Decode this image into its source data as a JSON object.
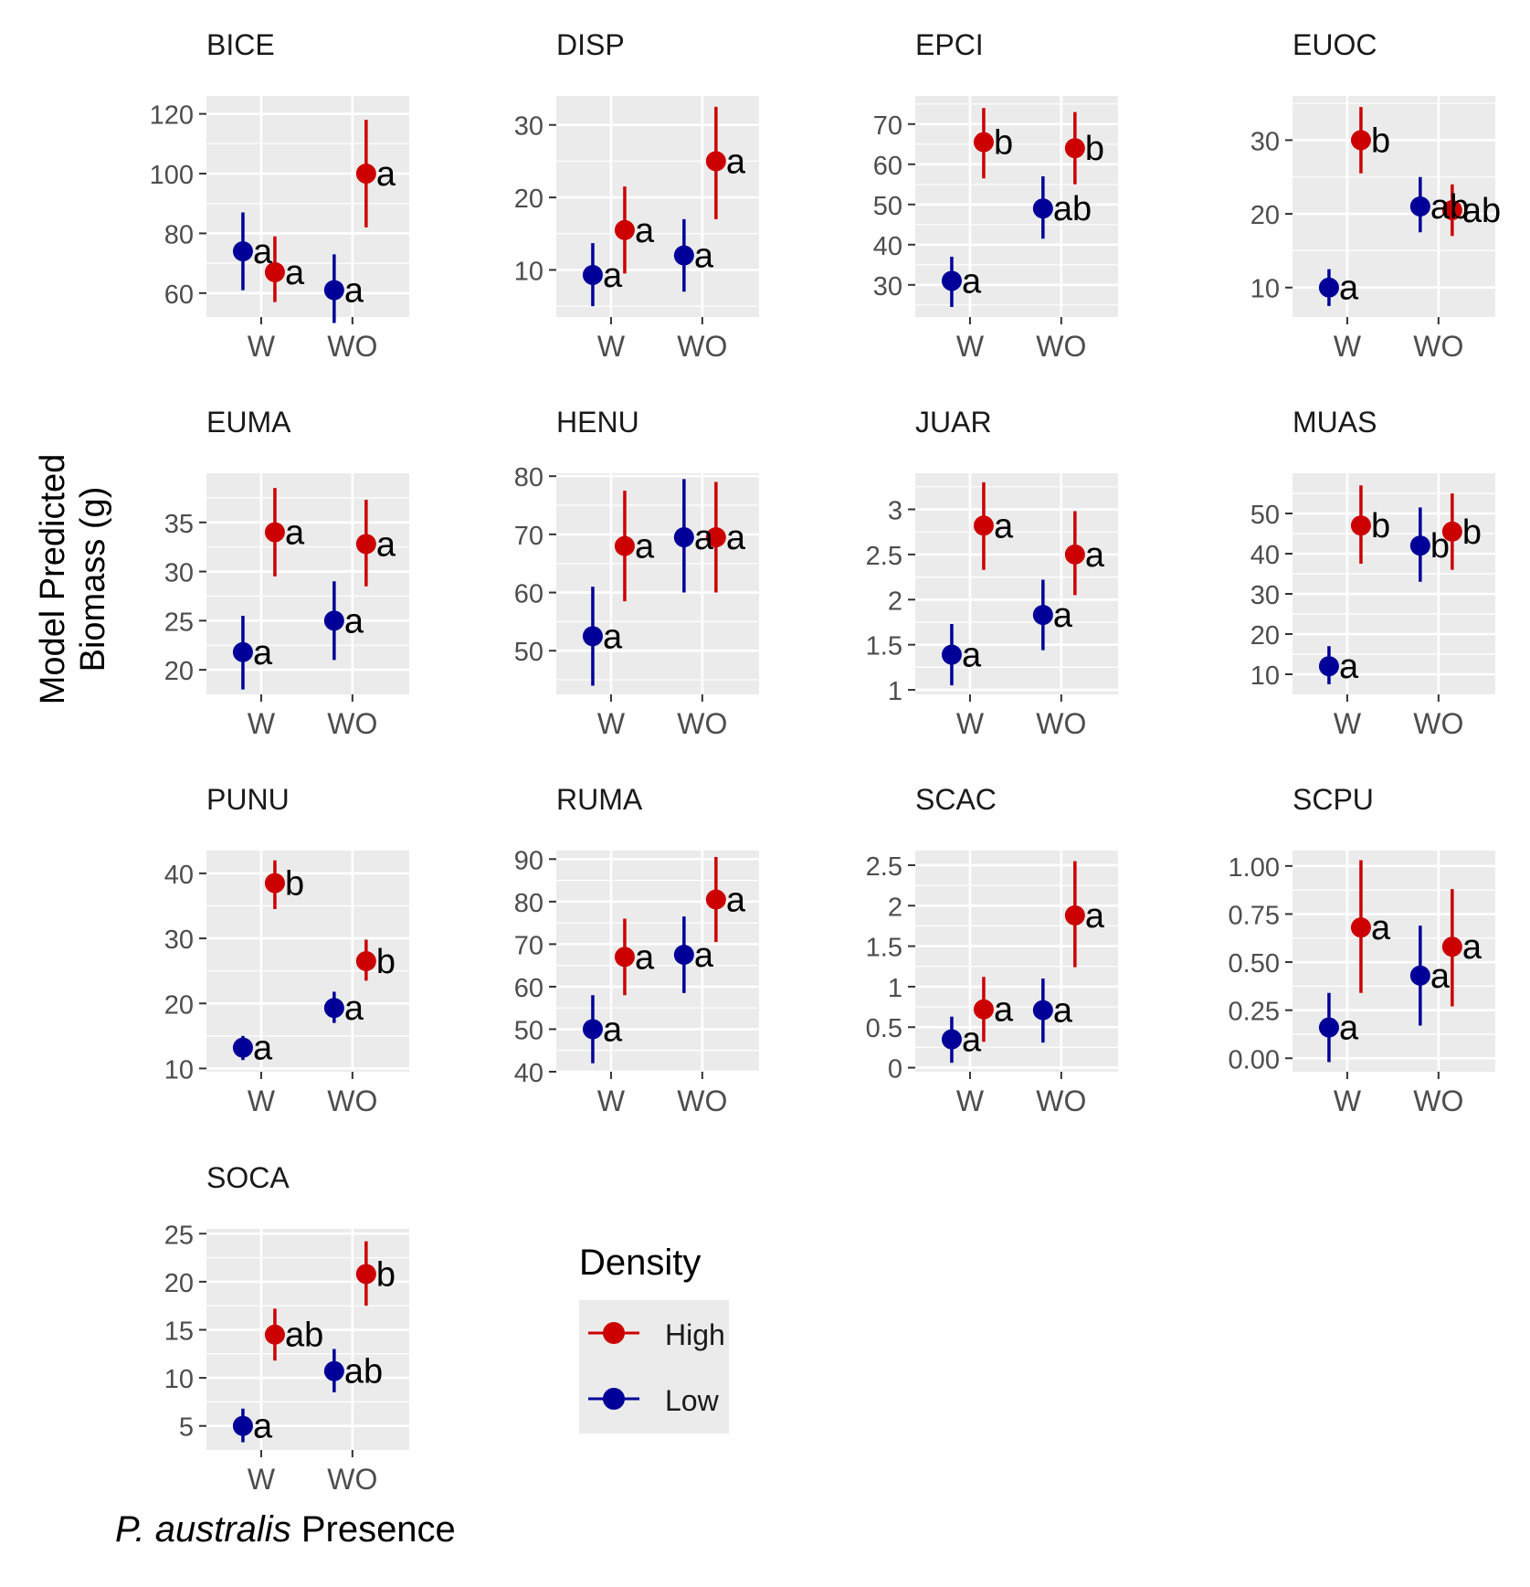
{
  "figure": {
    "y_axis_label_line1": "Model Predicted",
    "y_axis_label_line2": "Biomass (g)",
    "x_axis_label_italic": "P. australis",
    "x_axis_label_rest": " Presence"
  },
  "legend": {
    "title": "Density",
    "items": [
      {
        "label": "High",
        "color": "#cc0000"
      },
      {
        "label": "Low",
        "color": "#000099"
      }
    ]
  },
  "colors": {
    "High": "#cc0000",
    "Low": "#000099",
    "panel_bg": "#ebebeb",
    "grid": "#ffffff"
  },
  "chart_data": [
    {
      "type": "scatter",
      "title": "BICE",
      "categories": [
        "W",
        "WO"
      ],
      "ylim": [
        52,
        126
      ],
      "yticks": [
        60,
        80,
        100,
        120
      ],
      "series": [
        {
          "name": "High",
          "points": [
            {
              "x": "W",
              "y": 67,
              "lo": 57,
              "hi": 79,
              "label": "a"
            },
            {
              "x": "WO",
              "y": 100,
              "lo": 82,
              "hi": 118,
              "label": "a"
            }
          ]
        },
        {
          "name": "Low",
          "points": [
            {
              "x": "W",
              "y": 74,
              "lo": 61,
              "hi": 87,
              "label": "a"
            },
            {
              "x": "WO",
              "y": 61,
              "lo": 50,
              "hi": 73,
              "label": "a"
            }
          ]
        }
      ]
    },
    {
      "type": "scatter",
      "title": "DISP",
      "categories": [
        "W",
        "WO"
      ],
      "ylim": [
        3.5,
        34
      ],
      "yticks": [
        10,
        20,
        30
      ],
      "series": [
        {
          "name": "High",
          "points": [
            {
              "x": "W",
              "y": 15.5,
              "lo": 9.5,
              "hi": 21.5,
              "label": "a"
            },
            {
              "x": "WO",
              "y": 25,
              "lo": 17,
              "hi": 32.5,
              "label": "a"
            }
          ]
        },
        {
          "name": "Low",
          "points": [
            {
              "x": "W",
              "y": 9.3,
              "lo": 5,
              "hi": 13.7,
              "label": "a"
            },
            {
              "x": "WO",
              "y": 12,
              "lo": 7,
              "hi": 17,
              "label": "a"
            }
          ]
        }
      ]
    },
    {
      "type": "scatter",
      "title": "EPCI",
      "categories": [
        "W",
        "WO"
      ],
      "ylim": [
        22,
        77
      ],
      "yticks": [
        30,
        40,
        50,
        60,
        70
      ],
      "series": [
        {
          "name": "High",
          "points": [
            {
              "x": "W",
              "y": 65.5,
              "lo": 56.5,
              "hi": 74,
              "label": "b"
            },
            {
              "x": "WO",
              "y": 64,
              "lo": 55,
              "hi": 73,
              "label": "b"
            }
          ]
        },
        {
          "name": "Low",
          "points": [
            {
              "x": "W",
              "y": 31,
              "lo": 24.5,
              "hi": 37,
              "label": "a"
            },
            {
              "x": "WO",
              "y": 49,
              "lo": 41.5,
              "hi": 57,
              "label": "ab"
            }
          ]
        }
      ]
    },
    {
      "type": "scatter",
      "title": "EUOC",
      "categories": [
        "W",
        "WO"
      ],
      "ylim": [
        6,
        36
      ],
      "yticks": [
        10,
        20,
        30
      ],
      "series": [
        {
          "name": "High",
          "points": [
            {
              "x": "W",
              "y": 30,
              "lo": 25.5,
              "hi": 34.5,
              "label": "b"
            },
            {
              "x": "WO",
              "y": 20.5,
              "lo": 17,
              "hi": 24,
              "label": "ab"
            }
          ]
        },
        {
          "name": "Low",
          "points": [
            {
              "x": "W",
              "y": 10,
              "lo": 7.5,
              "hi": 12.5,
              "label": "a"
            },
            {
              "x": "WO",
              "y": 21,
              "lo": 17.5,
              "hi": 25,
              "label": "ab"
            }
          ]
        }
      ]
    },
    {
      "type": "scatter",
      "title": "EUMA",
      "categories": [
        "W",
        "WO"
      ],
      "ylim": [
        17.5,
        40
      ],
      "yticks": [
        20,
        25,
        30,
        35
      ],
      "series": [
        {
          "name": "High",
          "points": [
            {
              "x": "W",
              "y": 34,
              "lo": 29.5,
              "hi": 38.5,
              "label": "a"
            },
            {
              "x": "WO",
              "y": 32.8,
              "lo": 28.5,
              "hi": 37.3,
              "label": "a"
            }
          ]
        },
        {
          "name": "Low",
          "points": [
            {
              "x": "W",
              "y": 21.8,
              "lo": 18,
              "hi": 25.5,
              "label": "a"
            },
            {
              "x": "WO",
              "y": 25,
              "lo": 21,
              "hi": 29,
              "label": "a"
            }
          ]
        }
      ]
    },
    {
      "type": "scatter",
      "title": "HENU",
      "categories": [
        "W",
        "WO"
      ],
      "ylim": [
        42.5,
        80.5
      ],
      "yticks": [
        50,
        60,
        70,
        80
      ],
      "series": [
        {
          "name": "High",
          "points": [
            {
              "x": "W",
              "y": 68,
              "lo": 58.5,
              "hi": 77.5,
              "label": "a"
            },
            {
              "x": "WO",
              "y": 69.5,
              "lo": 60,
              "hi": 79,
              "label": "a"
            }
          ]
        },
        {
          "name": "Low",
          "points": [
            {
              "x": "W",
              "y": 52.5,
              "lo": 44,
              "hi": 61,
              "label": "a"
            },
            {
              "x": "WO",
              "y": 69.5,
              "lo": 60,
              "hi": 79.5,
              "label": "a"
            }
          ]
        }
      ]
    },
    {
      "type": "scatter",
      "title": "JUAR",
      "categories": [
        "W",
        "WO"
      ],
      "ylim": [
        0.95,
        3.4
      ],
      "yticks": [
        1.0,
        1.5,
        2.0,
        2.5,
        3.0
      ],
      "series": [
        {
          "name": "High",
          "points": [
            {
              "x": "W",
              "y": 2.82,
              "lo": 2.33,
              "hi": 3.3,
              "label": "a"
            },
            {
              "x": "WO",
              "y": 2.5,
              "lo": 2.05,
              "hi": 2.98,
              "label": "a"
            }
          ]
        },
        {
          "name": "Low",
          "points": [
            {
              "x": "W",
              "y": 1.39,
              "lo": 1.05,
              "hi": 1.73,
              "label": "a"
            },
            {
              "x": "WO",
              "y": 1.83,
              "lo": 1.44,
              "hi": 2.22,
              "label": "a"
            }
          ]
        }
      ]
    },
    {
      "type": "scatter",
      "title": "MUAS",
      "categories": [
        "W",
        "WO"
      ],
      "ylim": [
        5,
        60
      ],
      "yticks": [
        10,
        20,
        30,
        40,
        50
      ],
      "series": [
        {
          "name": "High",
          "points": [
            {
              "x": "W",
              "y": 47,
              "lo": 37.5,
              "hi": 57,
              "label": "b"
            },
            {
              "x": "WO",
              "y": 45.5,
              "lo": 36,
              "hi": 55,
              "label": "b"
            }
          ]
        },
        {
          "name": "Low",
          "points": [
            {
              "x": "W",
              "y": 12,
              "lo": 7.5,
              "hi": 17,
              "label": "a"
            },
            {
              "x": "WO",
              "y": 42,
              "lo": 33,
              "hi": 51.5,
              "label": "b"
            }
          ]
        }
      ]
    },
    {
      "type": "scatter",
      "title": "PUNU",
      "categories": [
        "W",
        "WO"
      ],
      "ylim": [
        9.5,
        43.5
      ],
      "yticks": [
        10,
        20,
        30,
        40
      ],
      "series": [
        {
          "name": "High",
          "points": [
            {
              "x": "W",
              "y": 38.5,
              "lo": 34.5,
              "hi": 42,
              "label": "b"
            },
            {
              "x": "WO",
              "y": 26.5,
              "lo": 23.5,
              "hi": 29.8,
              "label": "b"
            }
          ]
        },
        {
          "name": "Low",
          "points": [
            {
              "x": "W",
              "y": 13.2,
              "lo": 11.3,
              "hi": 15,
              "label": "a"
            },
            {
              "x": "WO",
              "y": 19.3,
              "lo": 17,
              "hi": 21.8,
              "label": "a"
            }
          ]
        }
      ]
    },
    {
      "type": "scatter",
      "title": "RUMA",
      "categories": [
        "W",
        "WO"
      ],
      "ylim": [
        40,
        92
      ],
      "yticks": [
        40,
        50,
        60,
        70,
        80,
        90
      ],
      "series": [
        {
          "name": "High",
          "points": [
            {
              "x": "W",
              "y": 67,
              "lo": 58,
              "hi": 76,
              "label": "a"
            },
            {
              "x": "WO",
              "y": 80.5,
              "lo": 70.5,
              "hi": 90.5,
              "label": "a"
            }
          ]
        },
        {
          "name": "Low",
          "points": [
            {
              "x": "W",
              "y": 50,
              "lo": 42,
              "hi": 58,
              "label": "a"
            },
            {
              "x": "WO",
              "y": 67.5,
              "lo": 58.5,
              "hi": 76.5,
              "label": "a"
            }
          ]
        }
      ]
    },
    {
      "type": "scatter",
      "title": "SCAC",
      "categories": [
        "W",
        "WO"
      ],
      "ylim": [
        -0.05,
        2.68
      ],
      "yticks": [
        0.0,
        0.5,
        1.0,
        1.5,
        2.0,
        2.5
      ],
      "series": [
        {
          "name": "High",
          "points": [
            {
              "x": "W",
              "y": 0.72,
              "lo": 0.32,
              "hi": 1.12,
              "label": "a"
            },
            {
              "x": "WO",
              "y": 1.88,
              "lo": 1.24,
              "hi": 2.55,
              "label": "a"
            }
          ]
        },
        {
          "name": "Low",
          "points": [
            {
              "x": "W",
              "y": 0.35,
              "lo": 0.06,
              "hi": 0.63,
              "label": "a"
            },
            {
              "x": "WO",
              "y": 0.71,
              "lo": 0.31,
              "hi": 1.1,
              "label": "a"
            }
          ]
        }
      ]
    },
    {
      "type": "scatter",
      "title": "SCPU",
      "categories": [
        "W",
        "WO"
      ],
      "ylim": [
        -0.07,
        1.08
      ],
      "yticks": [
        0.0,
        0.25,
        0.5,
        0.75,
        1.0
      ],
      "ytick_labels": [
        "0.00",
        "0.25",
        "0.50",
        "0.75",
        "1.00"
      ],
      "series": [
        {
          "name": "High",
          "points": [
            {
              "x": "W",
              "y": 0.68,
              "lo": 0.34,
              "hi": 1.03,
              "label": "a"
            },
            {
              "x": "WO",
              "y": 0.58,
              "lo": 0.27,
              "hi": 0.88,
              "label": "a"
            }
          ]
        },
        {
          "name": "Low",
          "points": [
            {
              "x": "W",
              "y": 0.16,
              "lo": -0.02,
              "hi": 0.34,
              "label": "a"
            },
            {
              "x": "WO",
              "y": 0.43,
              "lo": 0.17,
              "hi": 0.69,
              "label": "a"
            }
          ]
        }
      ]
    },
    {
      "type": "scatter",
      "title": "SOCA",
      "categories": [
        "W",
        "WO"
      ],
      "ylim": [
        2.5,
        25.5
      ],
      "yticks": [
        5,
        10,
        15,
        20,
        25
      ],
      "series": [
        {
          "name": "High",
          "points": [
            {
              "x": "W",
              "y": 14.5,
              "lo": 11.8,
              "hi": 17.2,
              "label": "ab"
            },
            {
              "x": "WO",
              "y": 20.8,
              "lo": 17.5,
              "hi": 24.2,
              "label": "b"
            }
          ]
        },
        {
          "name": "Low",
          "points": [
            {
              "x": "W",
              "y": 5,
              "lo": 3.3,
              "hi": 6.8,
              "label": "a"
            },
            {
              "x": "WO",
              "y": 10.7,
              "lo": 8.5,
              "hi": 13,
              "label": "ab"
            }
          ]
        }
      ]
    }
  ]
}
